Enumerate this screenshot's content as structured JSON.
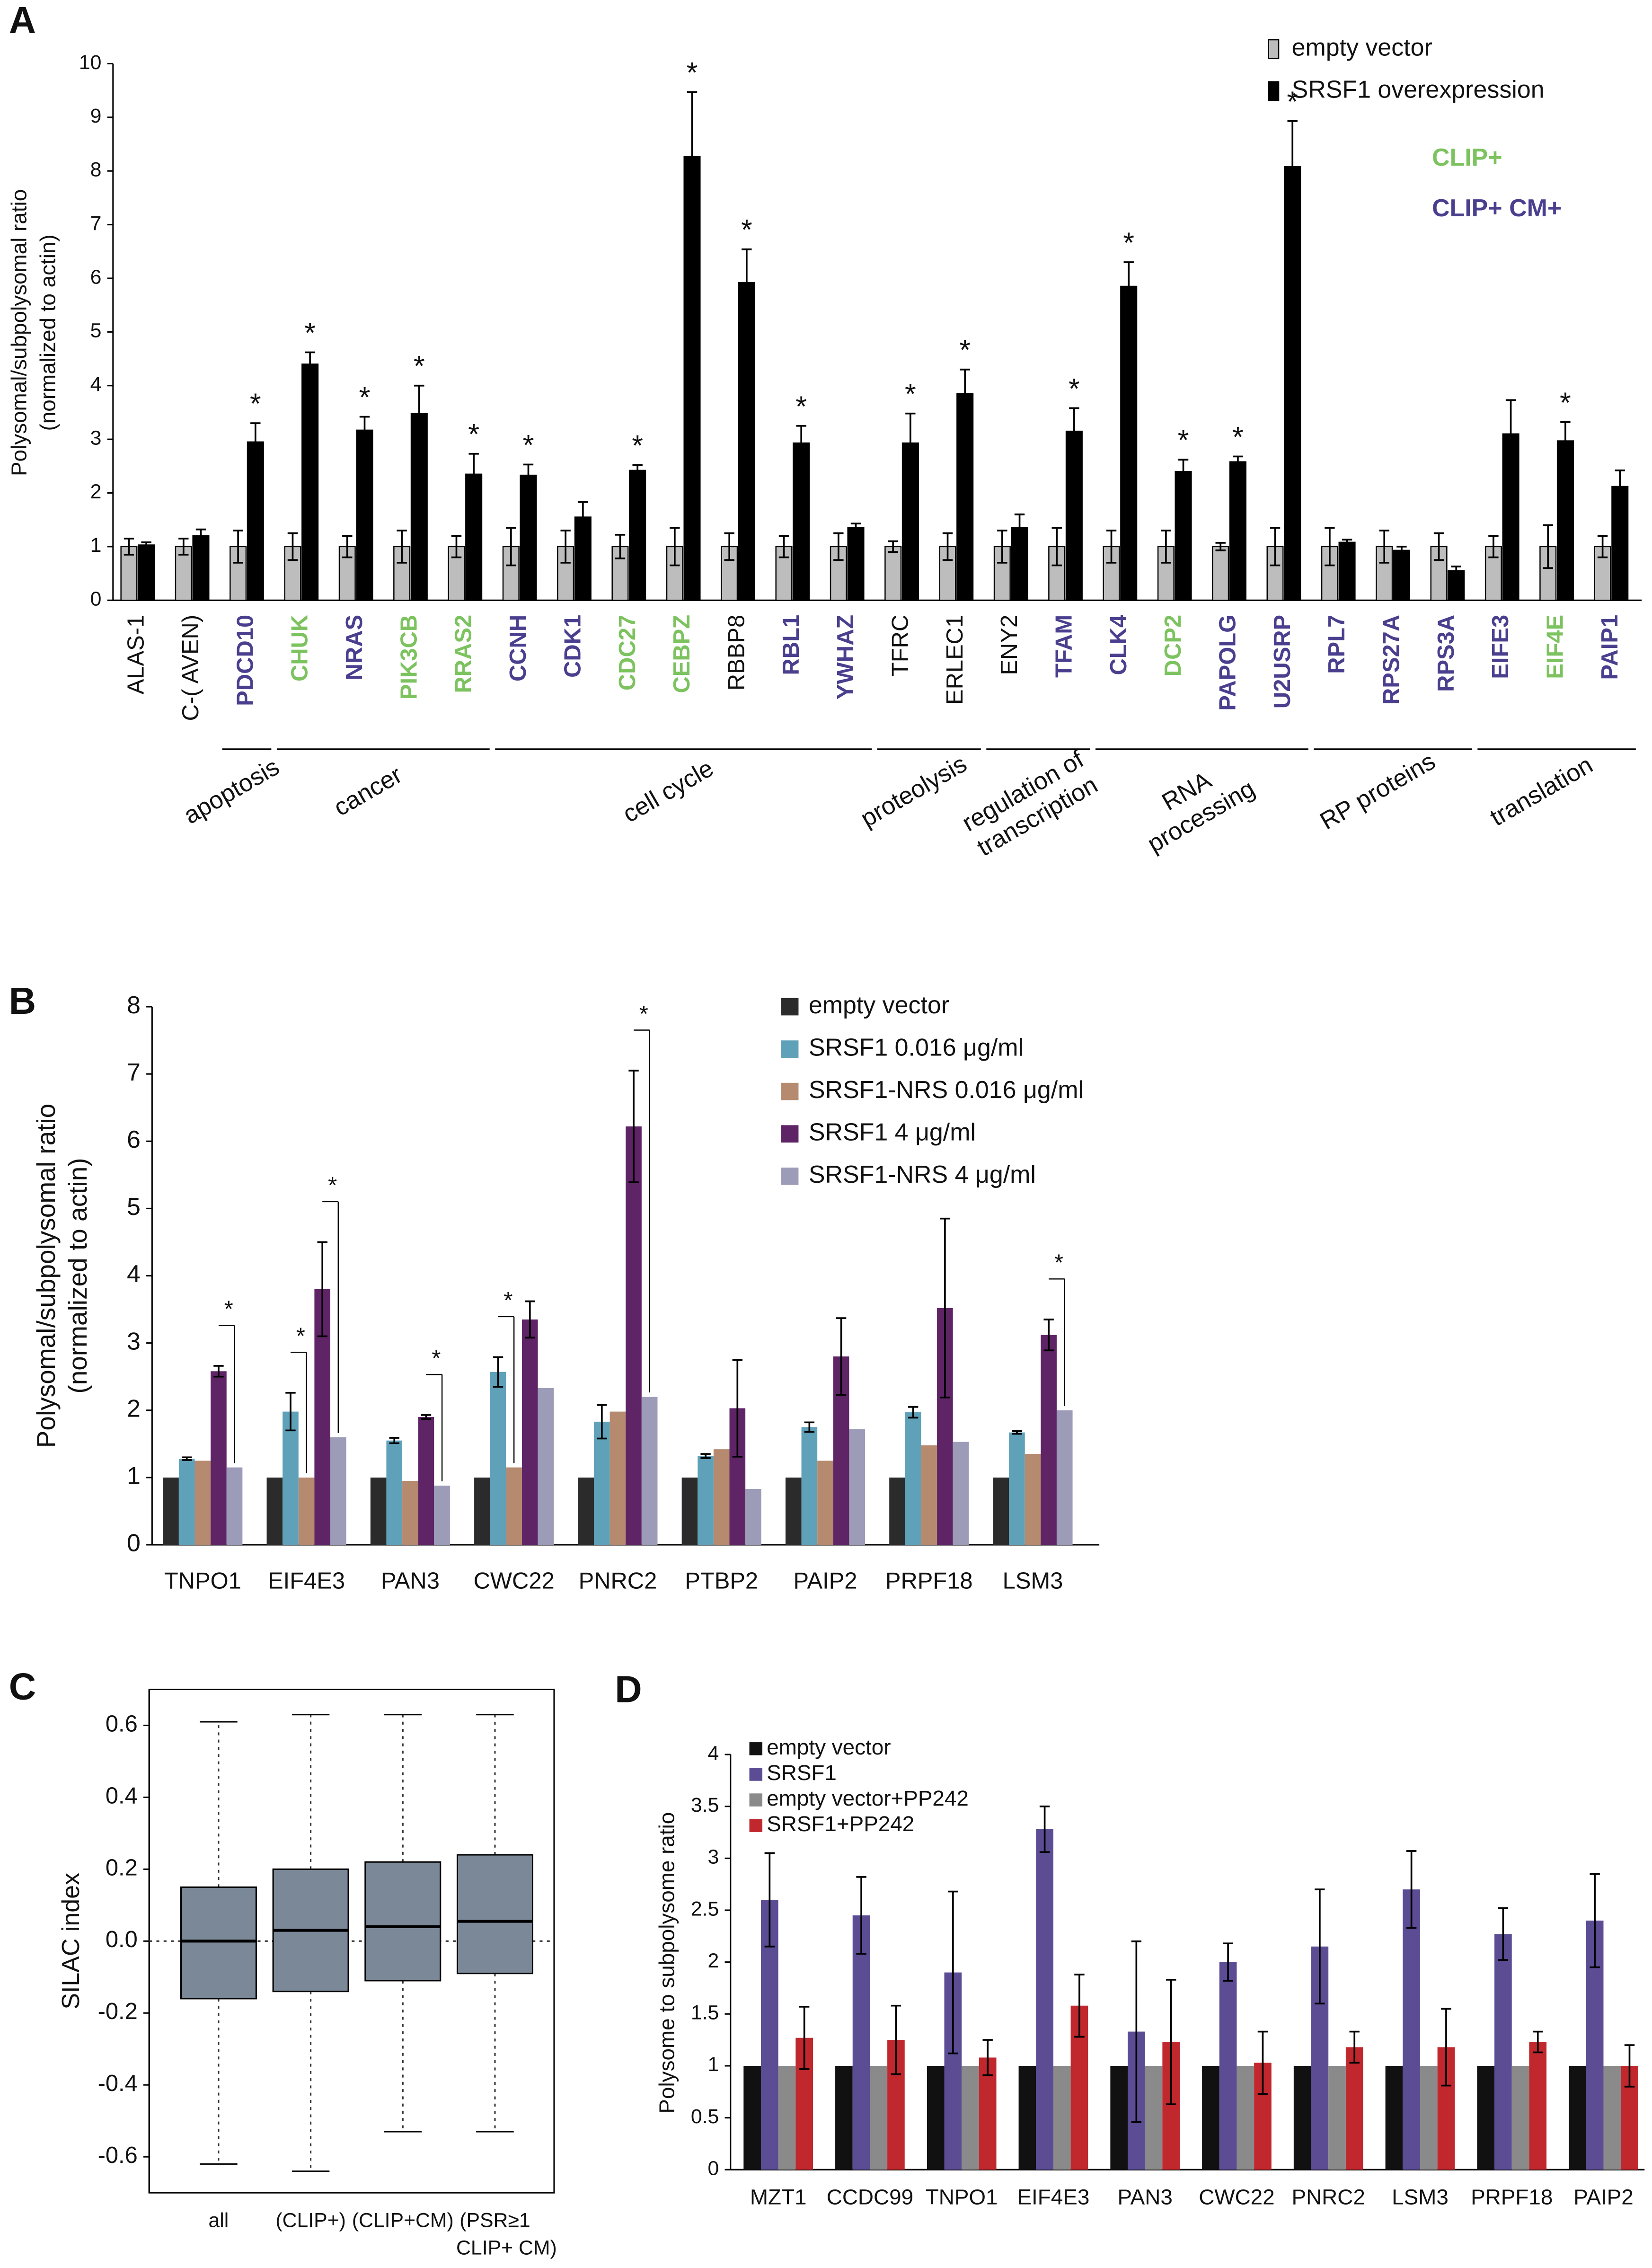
{
  "chart_data": [
    {
      "type": "bar",
      "panel": "A",
      "y_label": [
        "Polysomal/subpolysomal ratio",
        "(normalized to actin)"
      ],
      "categories": [
        "ALAS-1",
        "C-( AVEN)",
        "PDCD10",
        "CHUK",
        "NRAS",
        "PIK3CB",
        "RRAS2",
        "CCNH",
        "CDK1",
        "CDC27",
        "CEBPZ",
        "RBBP8",
        "RBL1",
        "YWHAZ",
        "TFRC",
        "ERLEC1",
        "ENY2",
        "TFAM",
        "CLK4",
        "DCP2",
        "PAPOLG",
        "U2USRP",
        "RPL7",
        "RPS27A",
        "RPS3A",
        "EIFE3",
        "EIF4E",
        "PAIP1"
      ],
      "label_key": [
        null,
        null,
        1,
        0,
        1,
        0,
        0,
        1,
        1,
        0,
        0,
        null,
        1,
        1,
        null,
        null,
        null,
        1,
        1,
        0,
        1,
        1,
        1,
        1,
        1,
        1,
        0,
        1
      ],
      "label_colors": [
        {
          "label": "CLIP+",
          "color": "#7cc35f",
          "bold": true
        },
        {
          "label": "CLIP+ CM+",
          "color": "#4a3f8e",
          "bold": true
        }
      ],
      "series": [
        {
          "name": "empty vector",
          "color": "#bdbdbd",
          "values": [
            1,
            1,
            1,
            1,
            1,
            1,
            1,
            1,
            1,
            1,
            1,
            1,
            1,
            1,
            1,
            1,
            1,
            1,
            1,
            1,
            1,
            1,
            1,
            1,
            1,
            1,
            1,
            1
          ],
          "errors": [
            0.15,
            0.15,
            0.3,
            0.25,
            0.2,
            0.3,
            0.2,
            0.35,
            0.3,
            0.22,
            0.35,
            0.25,
            0.2,
            0.25,
            0.1,
            0.25,
            0.3,
            0.35,
            0.3,
            0.3,
            0.07,
            0.35,
            0.35,
            0.3,
            0.25,
            0.2,
            0.4,
            0.2
          ]
        },
        {
          "name": "SRSF1 overexpression",
          "color": "#000000",
          "values": [
            1.03,
            1.2,
            2.95,
            4.4,
            3.17,
            3.48,
            2.35,
            2.33,
            1.55,
            2.42,
            8.27,
            5.92,
            2.93,
            1.35,
            2.93,
            3.85,
            1.35,
            3.15,
            5.85,
            2.4,
            2.58,
            8.08,
            1.08,
            0.93,
            0.55,
            3.1,
            2.97,
            2.12
          ],
          "errors": [
            0.05,
            0.12,
            0.35,
            0.22,
            0.25,
            0.52,
            0.38,
            0.2,
            0.28,
            0.1,
            1.2,
            0.62,
            0.32,
            0.08,
            0.55,
            0.45,
            0.25,
            0.43,
            0.45,
            0.22,
            0.1,
            0.85,
            0.05,
            0.07,
            0.08,
            0.63,
            0.35,
            0.3
          ]
        }
      ],
      "annotations": [
        null,
        null,
        "*",
        "*",
        "*",
        "*",
        "*",
        "*",
        null,
        "*",
        "*",
        "*",
        "*",
        null,
        "*",
        "*",
        null,
        "*",
        "*",
        "*",
        "*",
        "*",
        null,
        null,
        null,
        null,
        "*",
        null
      ],
      "groups": [
        {
          "label": [
            "apoptosis"
          ],
          "from": 2,
          "to": 2
        },
        {
          "label": [
            "cancer"
          ],
          "from": 3,
          "to": 6
        },
        {
          "label": [
            "cell cycle"
          ],
          "from": 7,
          "to": 13
        },
        {
          "label": [
            "proteolysis"
          ],
          "from": 14,
          "to": 15
        },
        {
          "label": [
            "regulation of",
            "transcription"
          ],
          "from": 16,
          "to": 17
        },
        {
          "label": [
            "RNA",
            "processing"
          ],
          "from": 18,
          "to": 21
        },
        {
          "label": [
            "RP proteins"
          ],
          "from": 22,
          "to": 24
        },
        {
          "label": [
            "translation"
          ],
          "from": 25,
          "to": 27
        }
      ],
      "ylim": [
        0,
        10
      ],
      "yticks": [
        0,
        1,
        2,
        3,
        4,
        5,
        6,
        7,
        8,
        9,
        10
      ],
      "grid": false,
      "legend": "upper right"
    },
    {
      "type": "bar",
      "panel": "B",
      "y_label": [
        "Polysomal/subpolysomal ratio",
        "(normalized to actin)"
      ],
      "categories": [
        "TNPO1",
        "EIF4E3",
        "PAN3",
        "CWC22",
        "PNRC2",
        "PTBP2",
        "PAIP2",
        "PRPF18",
        "LSM3"
      ],
      "series": [
        {
          "name": "empty vector",
          "color": "#2b2b2b",
          "values": [
            1,
            1,
            1,
            1,
            1,
            1,
            1,
            1,
            1
          ]
        },
        {
          "name": "SRSF1 0.016 μg/ml",
          "color": "#5fa1b9",
          "values": [
            1.28,
            1.98,
            1.55,
            2.57,
            1.83,
            1.32,
            1.75,
            1.97,
            1.67
          ],
          "errors": [
            0.02,
            0.28,
            0.04,
            0.22,
            0.25,
            0.03,
            0.07,
            0.08,
            0.02
          ]
        },
        {
          "name": "SRSF1-NRS 0.016 μg/ml",
          "color": "#b58a6e",
          "values": [
            1.25,
            1.0,
            0.95,
            1.15,
            1.98,
            1.42,
            1.25,
            1.48,
            1.35
          ]
        },
        {
          "name": "SRSF1 4 μg/ml",
          "color": "#5e2466",
          "values": [
            2.58,
            3.8,
            1.9,
            3.35,
            6.22,
            2.03,
            2.8,
            3.52,
            3.12
          ],
          "errors": [
            0.08,
            0.7,
            0.03,
            0.27,
            0.83,
            0.72,
            0.57,
            1.33,
            0.23
          ]
        },
        {
          "name": "SRSF1-NRS 4 μg/ml",
          "color": "#9c9bb8",
          "values": [
            1.15,
            1.6,
            0.88,
            2.33,
            2.2,
            0.83,
            1.72,
            1.53,
            2.0
          ]
        }
      ],
      "brackets": [
        {
          "category": 0,
          "series": [
            3,
            4
          ],
          "label": "*"
        },
        {
          "category": 1,
          "series": [
            1,
            2
          ],
          "label": "*"
        },
        {
          "category": 1,
          "series": [
            3,
            4
          ],
          "label": "*"
        },
        {
          "category": 2,
          "series": [
            3,
            4
          ],
          "label": "*"
        },
        {
          "category": 3,
          "series": [
            1,
            2
          ],
          "label": "*"
        },
        {
          "category": 4,
          "series": [
            3,
            4
          ],
          "label": "*"
        },
        {
          "category": 8,
          "series": [
            3,
            4
          ],
          "label": "*"
        }
      ],
      "ylim": [
        0,
        8
      ],
      "yticks": [
        0,
        1,
        2,
        3,
        4,
        5,
        6,
        7,
        8
      ],
      "grid": false,
      "legend": "upper right"
    },
    {
      "type": "box",
      "panel": "C",
      "y_label": "SILAC index",
      "categories": [
        "all",
        "(CLIP+)",
        "(CLIP+CM)",
        [
          "(PSR≥1",
          "CLIP+ CM)"
        ]
      ],
      "color": "#7a8898",
      "boxes": [
        {
          "whisker_low": -0.62,
          "q1": -0.16,
          "median": 0,
          "q3": 0.15,
          "whisker_high": 0.61
        },
        {
          "whisker_low": -0.64,
          "q1": -0.14,
          "median": 0.03,
          "q3": 0.2,
          "whisker_high": 0.63
        },
        {
          "whisker_low": -0.53,
          "q1": -0.11,
          "median": 0.04,
          "q3": 0.22,
          "whisker_high": 0.63
        },
        {
          "whisker_low": -0.53,
          "q1": -0.09,
          "median": 0.055,
          "q3": 0.24,
          "whisker_high": 0.63
        }
      ],
      "reference_line": 0,
      "ylim": [
        -0.7,
        0.7
      ],
      "yticks": [
        -0.6,
        -0.4,
        -0.2,
        {
          "value": 0,
          "label": "0.0"
        },
        0.2,
        0.4,
        0.6
      ],
      "grid": false
    },
    {
      "type": "bar",
      "panel": "D",
      "y_label": "Polysome to subpolysome ratio",
      "categories": [
        "MZT1",
        "CCDC99",
        "TNPO1",
        "EIF4E3",
        "PAN3",
        "CWC22",
        "PNRC2",
        "LSM3",
        "PRPF18",
        "PAIP2"
      ],
      "series": [
        {
          "name": "empty vector",
          "color": "#111111",
          "values": [
            1,
            1,
            1,
            1,
            1,
            1,
            1,
            1,
            1,
            1
          ]
        },
        {
          "name": "SRSF1",
          "color": "#5b4c94",
          "values": [
            2.6,
            2.45,
            1.9,
            3.28,
            1.33,
            2.0,
            2.15,
            2.7,
            2.27,
            2.4
          ],
          "errors": [
            0.45,
            0.37,
            0.78,
            0.22,
            0.87,
            0.18,
            0.55,
            0.37,
            0.25,
            0.45
          ]
        },
        {
          "name": "empty vector+PP242",
          "color": "#8a8a8a",
          "values": [
            1,
            1,
            1,
            1,
            1,
            1,
            1,
            1,
            1,
            1
          ]
        },
        {
          "name": "SRSF1+PP242",
          "color": "#c0282d",
          "values": [
            1.27,
            1.25,
            1.08,
            1.58,
            1.23,
            1.03,
            1.18,
            1.18,
            1.23,
            1.0
          ],
          "errors": [
            0.3,
            0.33,
            0.17,
            0.3,
            0.6,
            0.3,
            0.15,
            0.37,
            0.1,
            0.2
          ]
        }
      ],
      "ylim": [
        0,
        4
      ],
      "yticks": [
        0,
        0.5,
        1,
        1.5,
        2,
        2.5,
        3,
        3.5,
        4
      ],
      "grid": false,
      "legend": "upper left"
    }
  ]
}
